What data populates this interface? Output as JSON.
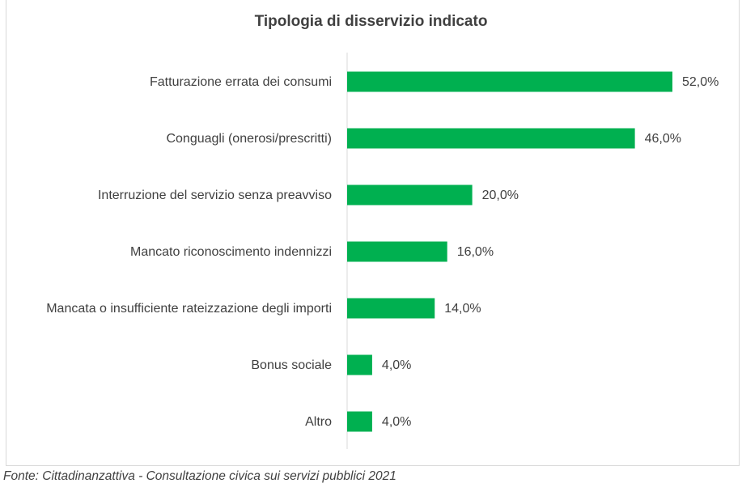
{
  "chart_data": {
    "type": "bar",
    "orientation": "horizontal",
    "title": "Tipologia di disservizio indicato",
    "categories": [
      "Fatturazione errata dei consumi",
      "Conguagli (onerosi/prescritti)",
      "Interruzione del servizio senza preavviso",
      "Mancato riconoscimento indennizzi",
      "Mancata o insufficiente rateizzazione degli importi",
      "Bonus sociale",
      "Altro"
    ],
    "values": [
      52.0,
      46.0,
      20.0,
      16.0,
      14.0,
      4.0,
      4.0
    ],
    "value_labels": [
      "52,0%",
      "46,0%",
      "20,0%",
      "16,0%",
      "14,0%",
      "4,0%",
      "4,0%"
    ],
    "xlim": [
      0,
      60
    ],
    "xlabel": "",
    "ylabel": "",
    "grid": false,
    "legend": "none",
    "bar_color": "#00b050",
    "axis_color": "#d9d9d9"
  },
  "footer": {
    "source": "Fonte: Cittadinanzattiva - Consultazione civica sui servizi pubblici 2021"
  }
}
